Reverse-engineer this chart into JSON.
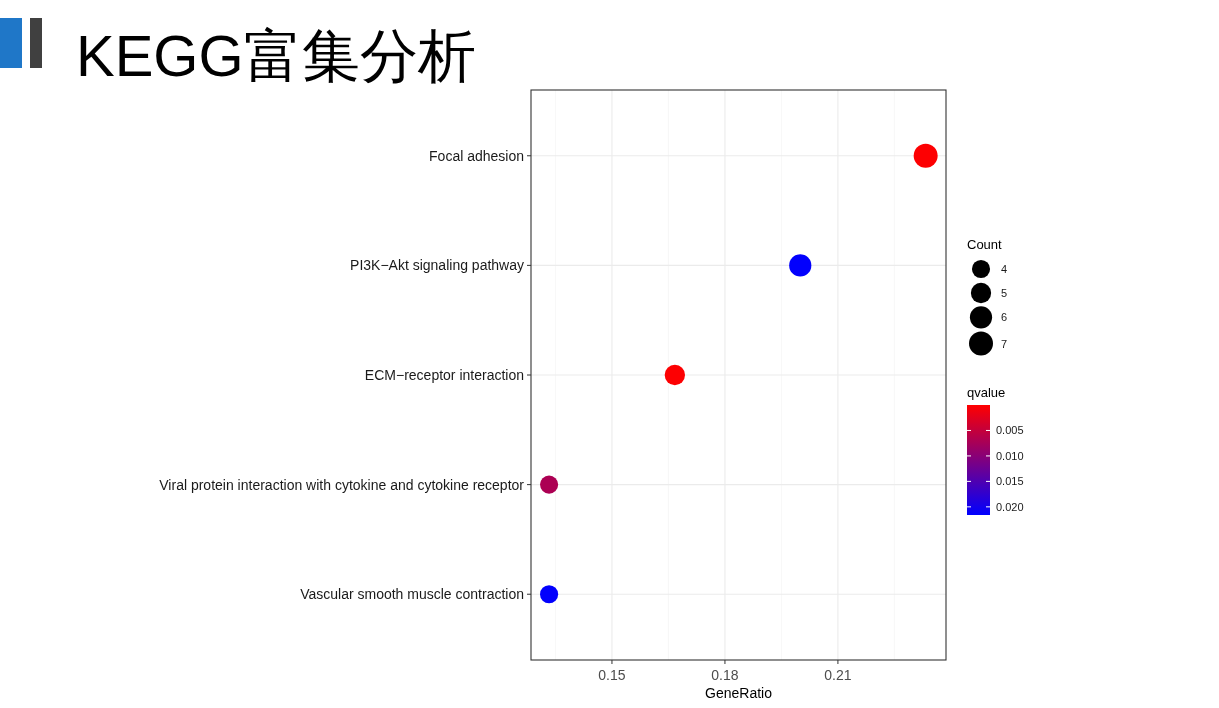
{
  "chart_data": {
    "type": "bubble",
    "title": "KEGG富集分析",
    "orientation": "horizontal",
    "xlabel": "GeneRatio",
    "legend_title": "Count",
    "clabel": "qvalue",
    "categories": [
      "Focal adhesion",
      "PI3K−Akt signaling pathway",
      "ECM−receptor interaction",
      "Viral protein interaction with cytokine and cytokine receptor",
      "Vascular smooth muscle contraction"
    ],
    "values": [
      0.2333,
      0.2,
      0.1667,
      0.1333,
      0.1333
    ],
    "sizes": [
      7,
      6,
      5,
      4,
      4
    ],
    "size_legend": [
      4,
      5,
      6,
      7
    ],
    "cvalues": [
      0.0002,
      0.0214,
      0.0002,
      0.007,
      0.0214
    ],
    "clim": [
      0.0216,
      0.0
    ],
    "cticks": [
      {
        "value": 0.005,
        "label": "0.005"
      },
      {
        "value": 0.01,
        "label": "0.010"
      },
      {
        "value": 0.015,
        "label": "0.015"
      },
      {
        "value": 0.02,
        "label": "0.020"
      }
    ],
    "xlim": [
      0.1285,
      0.2387
    ],
    "xticks": [
      0.15,
      0.18,
      0.21
    ],
    "grid": true,
    "marker": "circle"
  }
}
